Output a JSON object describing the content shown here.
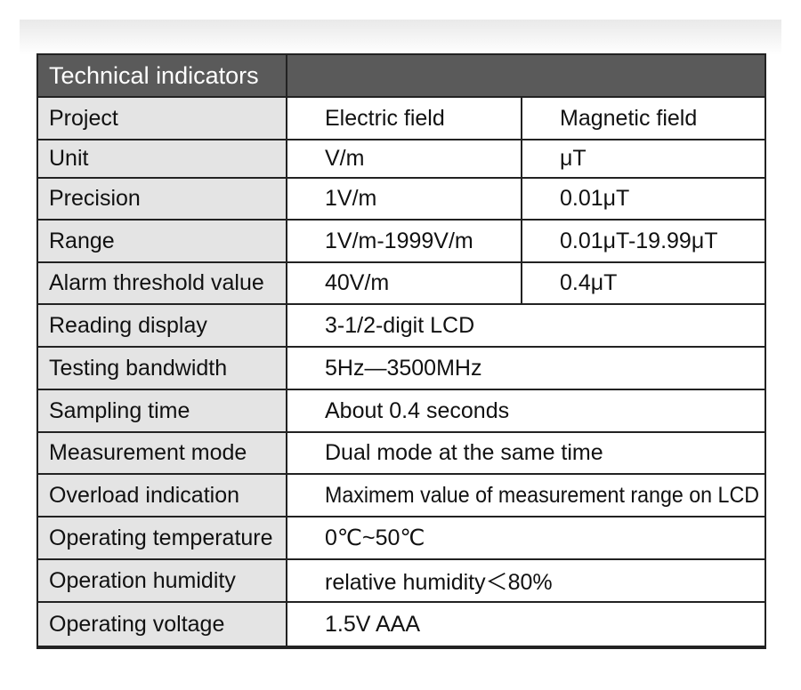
{
  "header": {
    "title": "Technical indicators"
  },
  "table": {
    "rows": [
      [
        "Project",
        "Electric field",
        "Magnetic field"
      ],
      [
        "Unit",
        "V/m",
        "μT"
      ],
      [
        "Precision",
        "1V/m",
        "0.01μT"
      ],
      [
        "Range",
        "1V/m-1999V/m",
        "0.01μT-19.99μT"
      ],
      [
        "Alarm threshold value",
        "40V/m",
        "0.4μT"
      ],
      [
        "Reading display",
        "3-1/2-digit LCD"
      ],
      [
        "Testing bandwidth",
        "5Hz—3500MHz"
      ],
      [
        "Sampling time",
        "About 0.4 seconds"
      ],
      [
        "Measurement mode",
        "Dual mode at the same time"
      ],
      [
        "Overload indication",
        "Maximem value of measurement range on LCD"
      ],
      [
        "Operating temperature",
        "0℃~50℃"
      ],
      [
        "Operation humidity",
        "relative humidity＜80%"
      ],
      [
        "Operating voltage",
        "1.5V AAA"
      ]
    ]
  }
}
